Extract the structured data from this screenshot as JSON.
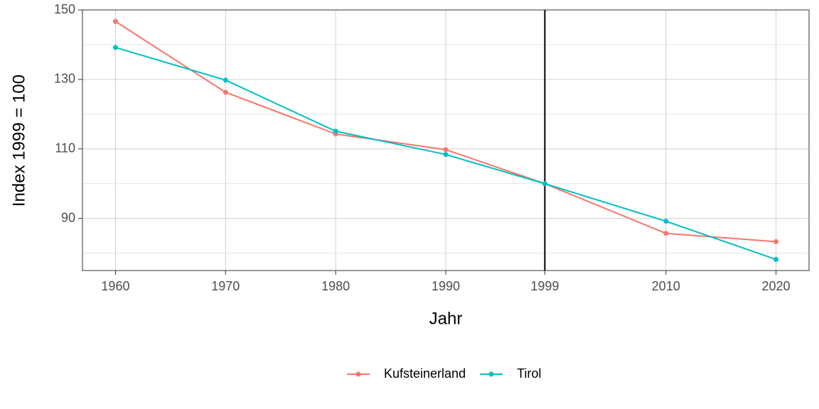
{
  "chart_data": {
    "type": "line",
    "x_label": "Jahr",
    "y_label": "Index 1999 = 100",
    "x": [
      1960,
      1970,
      1980,
      1990,
      1999,
      2010,
      2020
    ],
    "series": [
      {
        "name": "Kufsteinerland",
        "color": "#F8766D",
        "values": [
          146.7,
          126.3,
          114.3,
          109.8,
          100,
          85.7,
          83.3
        ]
      },
      {
        "name": "Tirol",
        "color": "#00BFC4",
        "values": [
          139.2,
          129.8,
          115.1,
          108.4,
          100,
          89.2,
          78.2
        ]
      }
    ],
    "xlim": [
      1957,
      2023
    ],
    "xticks": [
      1960,
      1970,
      1980,
      1990,
      1999,
      2010,
      2020
    ],
    "ylim": [
      75,
      150
    ],
    "yticks": [
      90,
      110,
      130,
      150
    ],
    "minor_yticks": [
      80,
      100,
      120,
      140
    ],
    "vline": 1999,
    "grid": true,
    "legend_position": "bottom"
  }
}
